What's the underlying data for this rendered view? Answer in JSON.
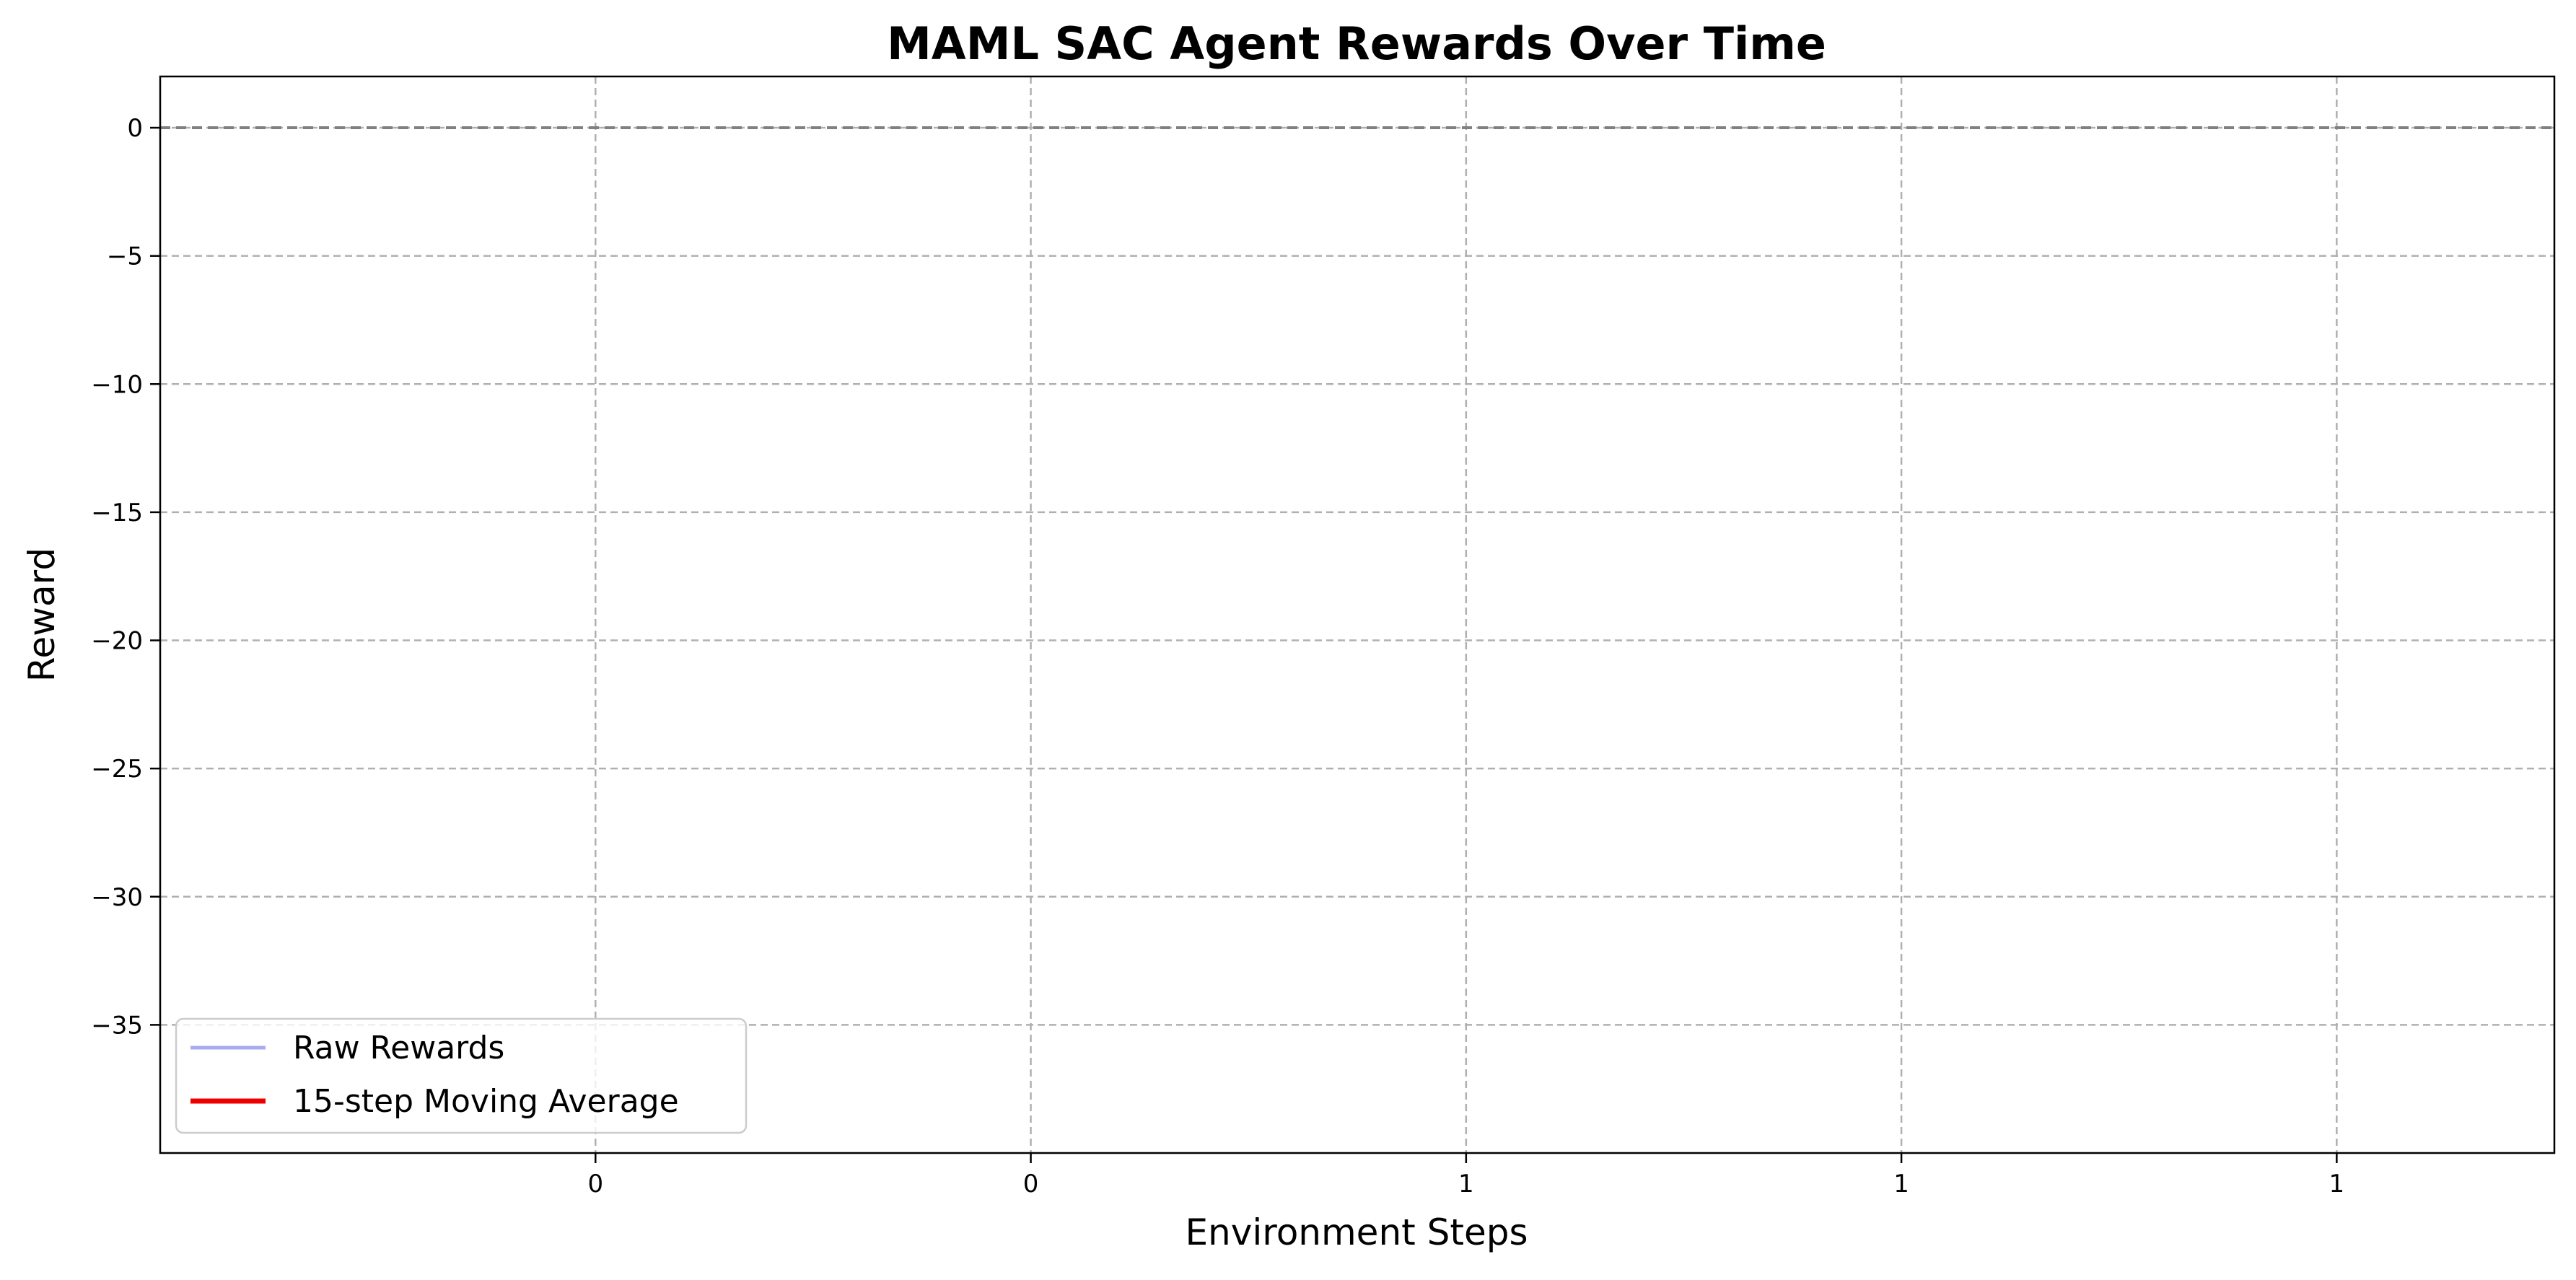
{
  "chart_data": {
    "type": "line",
    "title": "MAML SAC Agent Rewards Over Time",
    "xlabel": "Environment Steps",
    "ylabel": "Reward",
    "xlim": [
      0.0,
      1.65
    ],
    "ylim": [
      -40,
      2
    ],
    "x_ticks": [
      0.3,
      0.6,
      0.9,
      1.2,
      1.5
    ],
    "x_tick_labels": [
      "0",
      "0",
      "1",
      "1",
      "1"
    ],
    "y_ticks": [
      0,
      -5,
      -10,
      -15,
      -20,
      -25,
      -30,
      -35
    ],
    "y_tick_labels": [
      "0",
      "−5",
      "−10",
      "−15",
      "−20",
      "−25",
      "−30",
      "−35"
    ],
    "grid": true,
    "legend_position": "bottom-left",
    "reference_line": {
      "y": 0,
      "color": "#808080",
      "style": "dashed"
    },
    "series": [
      {
        "name": "Raw Rewards",
        "color": "#aaaaee",
        "x": [],
        "values": []
      },
      {
        "name": "15-step Moving Average",
        "color": "#ee0000",
        "x": [],
        "values": []
      }
    ]
  }
}
